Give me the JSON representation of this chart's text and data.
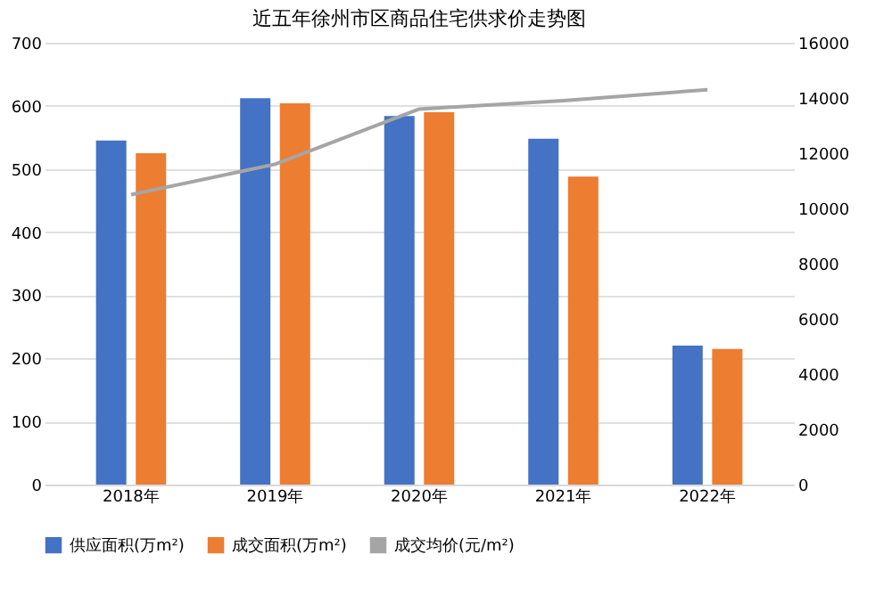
{
  "chart_data": {
    "type": "bar",
    "title": "近五年徐州市区商品住宅供求价走势图",
    "categories": [
      "2018年",
      "2019年",
      "2020年",
      "2021年",
      "2022年"
    ],
    "series": [
      {
        "name": "供应面积(万m²)",
        "color": "#4472c4",
        "values": [
          545,
          612,
          584,
          548,
          220
        ]
      },
      {
        "name": "成交面积(万m²)",
        "color": "#ed7d31",
        "values": [
          525,
          604,
          590,
          488,
          215
        ]
      },
      {
        "name": "成交均价(元/m²)",
        "color": "#a5a5a5",
        "type": "line",
        "axis": "y2",
        "values": [
          10500,
          11600,
          13600,
          13900,
          14300
        ]
      }
    ],
    "ylim": [
      0,
      700
    ],
    "yticks": [
      0,
      100,
      200,
      300,
      400,
      500,
      600,
      700
    ],
    "y2lim": [
      0,
      16000
    ],
    "y2ticks": [
      0,
      2000,
      4000,
      6000,
      8000,
      10000,
      12000,
      14000,
      16000
    ],
    "grid": "y",
    "legend": "bottom",
    "marker": "none"
  }
}
